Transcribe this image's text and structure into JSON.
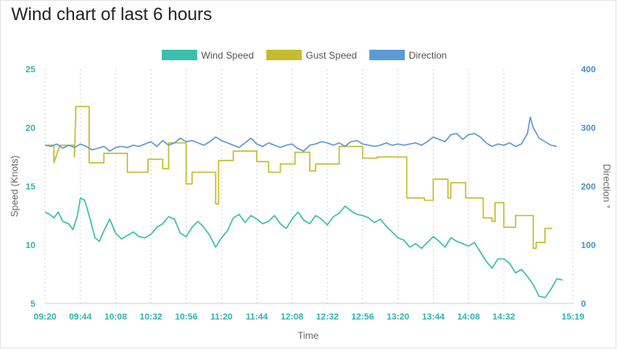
{
  "page": {
    "title": "Wind chart of last 6 hours"
  },
  "colors": {
    "wind": "#3bbfad",
    "gust": "#c4bc2c",
    "direction": "#5b9bd5",
    "grid": "#d8d8d8",
    "left_tick": "#2fb5a8",
    "right_tick": "#4a90c8"
  },
  "chart_data": {
    "type": "line",
    "title": "Wind chart of last 6 hours",
    "xlabel": "Time",
    "ylabel": "Speed (Knots)",
    "y2label": "Direction °",
    "ylim": [
      5,
      25
    ],
    "y2lim": [
      0,
      400
    ],
    "yticks": [
      "25",
      "20",
      "15",
      "10",
      "5"
    ],
    "y2ticks": [
      "400",
      "300",
      "200",
      "100",
      "0"
    ],
    "xticks": [
      "09:20",
      "09:44",
      "10:08",
      "10:32",
      "10:56",
      "11:20",
      "11:44",
      "12:08",
      "12:32",
      "12:56",
      "13:20",
      "13:44",
      "14:08",
      "14:32",
      "15:19"
    ],
    "x_range_minutes": [
      0,
      359
    ],
    "legend_position": "top-center",
    "grid": "vertical dotted",
    "series": [
      {
        "name": "Wind Speed",
        "axis": "left",
        "points": [
          [
            0,
            12.8
          ],
          [
            3,
            12.6
          ],
          [
            6,
            12.3
          ],
          [
            9,
            12.8
          ],
          [
            12,
            12
          ],
          [
            16,
            11.8
          ],
          [
            19,
            11.3
          ],
          [
            22,
            12.5
          ],
          [
            24,
            14
          ],
          [
            27,
            13.8
          ],
          [
            30,
            12.5
          ],
          [
            34,
            10.6
          ],
          [
            37,
            10.3
          ],
          [
            40,
            11.2
          ],
          [
            44,
            12.2
          ],
          [
            48,
            11
          ],
          [
            52,
            10.5
          ],
          [
            56,
            10.8
          ],
          [
            60,
            11.1
          ],
          [
            64,
            10.7
          ],
          [
            68,
            10.6
          ],
          [
            72,
            10.9
          ],
          [
            76,
            11.5
          ],
          [
            80,
            11.8
          ],
          [
            84,
            12.4
          ],
          [
            88,
            12.2
          ],
          [
            92,
            11
          ],
          [
            96,
            10.7
          ],
          [
            100,
            11.5
          ],
          [
            104,
            12
          ],
          [
            108,
            11.5
          ],
          [
            112,
            10.8
          ],
          [
            116,
            9.8
          ],
          [
            120,
            10.6
          ],
          [
            124,
            11.2
          ],
          [
            128,
            12.3
          ],
          [
            132,
            12.6
          ],
          [
            136,
            11.9
          ],
          [
            140,
            12.5
          ],
          [
            144,
            12.2
          ],
          [
            148,
            11.8
          ],
          [
            152,
            12
          ],
          [
            156,
            12.5
          ],
          [
            160,
            11.8
          ],
          [
            164,
            11.4
          ],
          [
            168,
            12.2
          ],
          [
            172,
            12.8
          ],
          [
            176,
            12.1
          ],
          [
            180,
            11.8
          ],
          [
            184,
            12.5
          ],
          [
            188,
            12.2
          ],
          [
            192,
            11.7
          ],
          [
            196,
            12.4
          ],
          [
            200,
            12.7
          ],
          [
            204,
            13.3
          ],
          [
            208,
            12.9
          ],
          [
            212,
            12.6
          ],
          [
            216,
            12.5
          ],
          [
            220,
            12.3
          ],
          [
            224,
            11.9
          ],
          [
            228,
            12.2
          ],
          [
            232,
            11.6
          ],
          [
            236,
            11.1
          ],
          [
            240,
            10.6
          ],
          [
            244,
            10.4
          ],
          [
            248,
            9.8
          ],
          [
            252,
            10.1
          ],
          [
            256,
            9.7
          ],
          [
            260,
            10.2
          ],
          [
            264,
            10.7
          ],
          [
            268,
            10.3
          ],
          [
            272,
            9.8
          ],
          [
            276,
            10.6
          ],
          [
            280,
            10.3
          ],
          [
            284,
            10.1
          ],
          [
            288,
            9.9
          ],
          [
            292,
            10.2
          ],
          [
            296,
            9.4
          ],
          [
            300,
            8.6
          ],
          [
            304,
            8
          ],
          [
            308,
            8.8
          ],
          [
            312,
            8.8
          ],
          [
            316,
            8.4
          ],
          [
            320,
            7.6
          ],
          [
            324,
            7.9
          ],
          [
            328,
            7.3
          ],
          [
            332,
            6.6
          ],
          [
            336,
            5.6
          ],
          [
            340,
            5.5
          ],
          [
            344,
            6.2
          ],
          [
            348,
            7.1
          ],
          [
            352,
            7
          ]
        ]
      },
      {
        "name": "Gust Speed",
        "axis": "left",
        "points": [
          [
            0,
            18.5
          ],
          [
            6,
            18.5
          ],
          [
            6,
            17
          ],
          [
            10,
            18.5
          ],
          [
            20,
            18.5
          ],
          [
            20,
            17.5
          ],
          [
            21,
            21.8
          ],
          [
            30,
            21.8
          ],
          [
            30,
            17
          ],
          [
            40,
            17
          ],
          [
            40,
            17.8
          ],
          [
            56,
            17.8
          ],
          [
            56,
            16.2
          ],
          [
            70,
            16.2
          ],
          [
            70,
            17.3
          ],
          [
            80,
            17.3
          ],
          [
            80,
            16.5
          ],
          [
            84,
            16.5
          ],
          [
            84,
            18.7
          ],
          [
            96,
            18.7
          ],
          [
            96,
            15.2
          ],
          [
            100,
            15.2
          ],
          [
            100,
            16.2
          ],
          [
            116,
            16.2
          ],
          [
            116,
            13.5
          ],
          [
            118,
            13.5
          ],
          [
            118,
            17.2
          ],
          [
            128,
            17.2
          ],
          [
            128,
            18
          ],
          [
            144,
            18
          ],
          [
            144,
            17.1
          ],
          [
            152,
            17.1
          ],
          [
            152,
            16.2
          ],
          [
            160,
            16.2
          ],
          [
            160,
            16.9
          ],
          [
            170,
            16.9
          ],
          [
            170,
            17.9
          ],
          [
            180,
            17.9
          ],
          [
            180,
            16.3
          ],
          [
            184,
            16.3
          ],
          [
            184,
            16.9
          ],
          [
            200,
            16.9
          ],
          [
            200,
            18.4
          ],
          [
            216,
            18.4
          ],
          [
            216,
            17.4
          ],
          [
            226,
            17.4
          ],
          [
            226,
            17.5
          ],
          [
            246,
            17.5
          ],
          [
            246,
            14
          ],
          [
            258,
            14
          ],
          [
            258,
            13.8
          ],
          [
            264,
            13.8
          ],
          [
            264,
            15.6
          ],
          [
            274,
            15.6
          ],
          [
            274,
            14
          ],
          [
            276,
            14
          ],
          [
            276,
            15.3
          ],
          [
            286,
            15.3
          ],
          [
            286,
            14
          ],
          [
            298,
            14
          ],
          [
            298,
            12.3
          ],
          [
            304,
            12.3
          ],
          [
            304,
            12
          ],
          [
            306,
            12
          ],
          [
            306,
            13.6
          ],
          [
            312,
            13.6
          ],
          [
            312,
            11.5
          ],
          [
            320,
            11.5
          ],
          [
            320,
            12.5
          ],
          [
            332,
            12.5
          ],
          [
            332,
            9.7
          ],
          [
            334,
            9.7
          ],
          [
            334,
            10.2
          ],
          [
            340,
            10.2
          ],
          [
            340,
            11.4
          ],
          [
            345,
            11.4
          ]
        ]
      },
      {
        "name": "Direction",
        "axis": "right",
        "points": [
          [
            0,
            270
          ],
          [
            4,
            268
          ],
          [
            8,
            272
          ],
          [
            12,
            265
          ],
          [
            16,
            270
          ],
          [
            20,
            266
          ],
          [
            24,
            272
          ],
          [
            28,
            268
          ],
          [
            32,
            262
          ],
          [
            36,
            265
          ],
          [
            40,
            268
          ],
          [
            44,
            260
          ],
          [
            48,
            266
          ],
          [
            52,
            268
          ],
          [
            56,
            266
          ],
          [
            60,
            270
          ],
          [
            64,
            268
          ],
          [
            68,
            272
          ],
          [
            72,
            276
          ],
          [
            76,
            268
          ],
          [
            80,
            278
          ],
          [
            84,
            270
          ],
          [
            88,
            274
          ],
          [
            92,
            282
          ],
          [
            96,
            276
          ],
          [
            100,
            278
          ],
          [
            104,
            274
          ],
          [
            108,
            270
          ],
          [
            112,
            276
          ],
          [
            116,
            284
          ],
          [
            120,
            278
          ],
          [
            124,
            274
          ],
          [
            128,
            270
          ],
          [
            132,
            266
          ],
          [
            136,
            274
          ],
          [
            140,
            282
          ],
          [
            144,
            272
          ],
          [
            148,
            268
          ],
          [
            152,
            274
          ],
          [
            156,
            270
          ],
          [
            160,
            266
          ],
          [
            164,
            270
          ],
          [
            168,
            272
          ],
          [
            172,
            264
          ],
          [
            176,
            260
          ],
          [
            180,
            270
          ],
          [
            184,
            272
          ],
          [
            188,
            276
          ],
          [
            192,
            274
          ],
          [
            196,
            270
          ],
          [
            200,
            274
          ],
          [
            204,
            268
          ],
          [
            208,
            276
          ],
          [
            212,
            278
          ],
          [
            216,
            272
          ],
          [
            220,
            270
          ],
          [
            224,
            268
          ],
          [
            228,
            270
          ],
          [
            232,
            274
          ],
          [
            236,
            270
          ],
          [
            240,
            272
          ],
          [
            244,
            270
          ],
          [
            248,
            272
          ],
          [
            252,
            274
          ],
          [
            256,
            270
          ],
          [
            260,
            276
          ],
          [
            264,
            284
          ],
          [
            268,
            280
          ],
          [
            272,
            276
          ],
          [
            276,
            288
          ],
          [
            280,
            290
          ],
          [
            284,
            280
          ],
          [
            288,
            288
          ],
          [
            292,
            290
          ],
          [
            296,
            284
          ],
          [
            300,
            274
          ],
          [
            304,
            268
          ],
          [
            308,
            272
          ],
          [
            312,
            270
          ],
          [
            316,
            274
          ],
          [
            320,
            268
          ],
          [
            324,
            272
          ],
          [
            328,
            290
          ],
          [
            330,
            318
          ],
          [
            332,
            300
          ],
          [
            336,
            282
          ],
          [
            340,
            276
          ],
          [
            344,
            270
          ],
          [
            348,
            268
          ]
        ]
      }
    ]
  }
}
